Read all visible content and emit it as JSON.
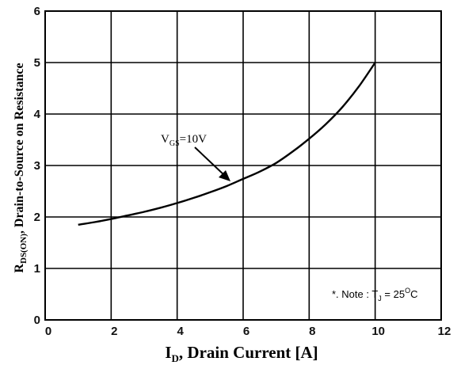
{
  "chart_data": {
    "type": "line",
    "title": "",
    "xlabel": {
      "main": "I",
      "sub": "D",
      "rest": ", Drain Current [A]"
    },
    "ylabel": {
      "main": "R",
      "sub": "DS(ON)",
      "rest": ", Drain-to-Source on Resistance"
    },
    "xlim": [
      0,
      12
    ],
    "ylim": [
      0,
      6
    ],
    "xticks": [
      0,
      2,
      4,
      6,
      8,
      10,
      12
    ],
    "yticks": [
      0,
      1,
      2,
      3,
      4,
      5,
      6
    ],
    "grid": true,
    "series": [
      {
        "name": "VGS=10V",
        "x": [
          1.0,
          1.5,
          2.0,
          2.5,
          3.0,
          3.5,
          4.0,
          4.5,
          5.0,
          5.5,
          6.0,
          6.5,
          7.0,
          7.5,
          8.0,
          8.5,
          9.0,
          9.5,
          10.0
        ],
        "y": [
          1.85,
          1.9,
          1.96,
          2.03,
          2.1,
          2.18,
          2.27,
          2.37,
          2.48,
          2.6,
          2.74,
          2.88,
          3.05,
          3.27,
          3.52,
          3.8,
          4.13,
          4.53,
          5.0
        ]
      }
    ],
    "annotations": [
      {
        "main": "V",
        "sub": "GS",
        "rest": "=10V"
      }
    ],
    "note": {
      "prefix": "*. Note : T",
      "sub": "J",
      "mid": " = 25",
      "sup": "O",
      "suffix": "C"
    }
  }
}
